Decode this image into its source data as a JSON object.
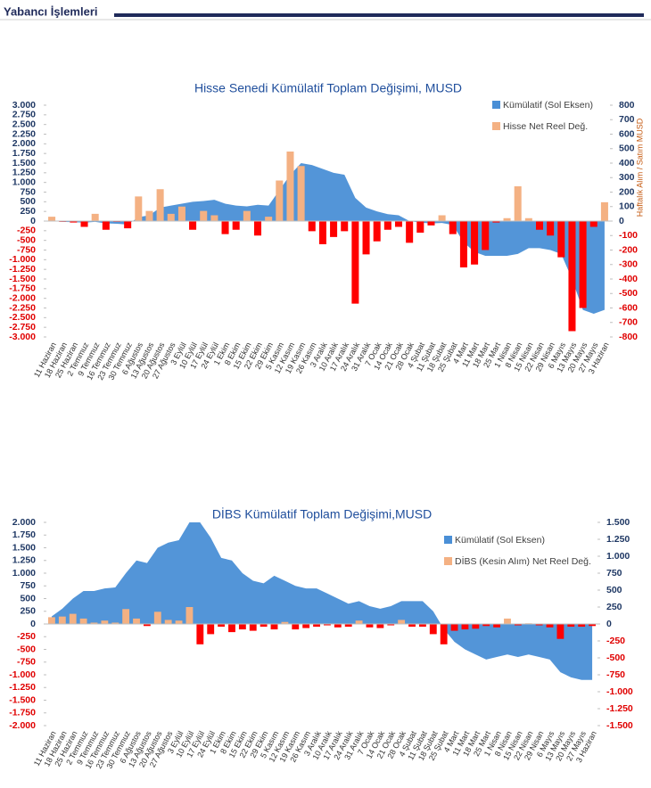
{
  "header": {
    "title": "Yabancı İşlemleri"
  },
  "chart_data": [
    {
      "type": "combo",
      "title": "Hisse Senedi Kümülatif Toplam Değişimi, MUSD",
      "y2label": "Haftalık Alım / Satım MUSD",
      "legend": "top-right",
      "categories": [
        "11 Haziran",
        "18 Haziran",
        "25 Haziran",
        "2 Temmuz",
        "9 Temmuz",
        "16 Temmuz",
        "23 Temmuz",
        "30 Temmuz",
        "6 Ağustos",
        "13 Ağustos",
        "20 Ağustos",
        "27 Ağustos",
        "3 Eylül",
        "10 Eylül",
        "17 Eylül",
        "24 Eylül",
        "1 Ekim",
        "8 Ekim",
        "15 Ekim",
        "22 Ekim",
        "29 Ekim",
        "5 Kasım",
        "12 Kasım",
        "19 Kasım",
        "26 Kasım",
        "3 Aralık",
        "10 Aralık",
        "17 Aralık",
        "24 Aralık",
        "31 Aralık",
        "7 Ocak",
        "14 Ocak",
        "21 Ocak",
        "28 Ocak",
        "4 Şubat",
        "11 Şubat",
        "18 Şubat",
        "25 Şubat",
        "4 Mart",
        "11 Mart",
        "18 Mart",
        "25 Mart",
        "1 Nisan",
        "8 Nisan",
        "15 Nisan",
        "22 Nisan",
        "29 Nisan",
        "6 Mayıs",
        "13 Mayıs",
        "20 Mayıs",
        "27 Mayıs",
        "3 Haziran"
      ],
      "series": [
        {
          "name": "Kümülatif (Sol Eksen)",
          "type": "area",
          "color": "#4a8fd6",
          "values": [
            0,
            -20,
            -30,
            -40,
            -20,
            -60,
            -70,
            -90,
            100,
            150,
            350,
            400,
            450,
            500,
            520,
            550,
            450,
            400,
            380,
            420,
            400,
            800,
            1200,
            1500,
            1450,
            1350,
            1250,
            1200,
            600,
            350,
            250,
            180,
            150,
            0,
            -40,
            -60,
            -50,
            -100,
            -550,
            -800,
            -900,
            -900,
            -900,
            -850,
            -700,
            -700,
            -750,
            -850,
            -1500,
            -2300,
            -2400,
            -2300
          ]
        },
        {
          "name": "Hisse Net Reel Değ.",
          "type": "bar",
          "axis": "y2",
          "color": "#f4b183",
          "negative_color": "#ff0000",
          "values": [
            30,
            -5,
            -10,
            -40,
            50,
            -60,
            -5,
            -50,
            170,
            70,
            220,
            50,
            100,
            -60,
            70,
            40,
            -90,
            -60,
            70,
            -100,
            30,
            280,
            480,
            380,
            -70,
            -160,
            -110,
            -70,
            -570,
            -230,
            -140,
            -60,
            -40,
            -150,
            -80,
            -30,
            40,
            -90,
            -320,
            -300,
            -200,
            -10,
            20,
            240,
            20,
            -60,
            -100,
            -250,
            -760,
            -600,
            -40,
            130
          ]
        }
      ],
      "ylim": [
        -3000,
        3000
      ],
      "yticks": [
        {
          "value": 3000,
          "label": "3.000"
        },
        {
          "value": 2750,
          "label": "2.750"
        },
        {
          "value": 2500,
          "label": "2.500"
        },
        {
          "value": 2250,
          "label": "2.250"
        },
        {
          "value": 2000,
          "label": "2.000"
        },
        {
          "value": 1750,
          "label": "1.750"
        },
        {
          "value": 1500,
          "label": "1.500"
        },
        {
          "value": 1250,
          "label": "1.250"
        },
        {
          "value": 1000,
          "label": "1.000"
        },
        750,
        500,
        250,
        0,
        -250,
        -500,
        -750,
        {
          "value": -1000,
          "label": "-1.000"
        },
        {
          "value": -1250,
          "label": "-1.250"
        },
        {
          "value": -1500,
          "label": "-1.500"
        },
        {
          "value": -1750,
          "label": "-1.750"
        },
        {
          "value": -2000,
          "label": "-2.000"
        },
        {
          "value": -2250,
          "label": "-2.250"
        },
        {
          "value": -2500,
          "label": "-2.500"
        },
        {
          "value": -2750,
          "label": "-2.750"
        },
        {
          "value": -3000,
          "label": "-3.000"
        }
      ],
      "y2lim": [
        -800,
        800
      ],
      "y2ticks": [
        800,
        700,
        600,
        500,
        400,
        300,
        200,
        100,
        0,
        -100,
        -200,
        -300,
        -400,
        -500,
        -600,
        -700,
        -800
      ]
    },
    {
      "type": "combo",
      "title": "DİBS Kümülatif Toplam Değişimi,MUSD",
      "legend": "top-right",
      "categories": [
        "11 Haziran",
        "18 Haziran",
        "25 Haziran",
        "2 Temmuz",
        "9 Temmuz",
        "16 Temmuz",
        "23 Temmuz",
        "30 Temmuz",
        "6 Ağustos",
        "13 Ağustos",
        "20 Ağustos",
        "27 Ağustos",
        "3 Eylül",
        "10 Eylül",
        "17 Eylül",
        "24 Eylül",
        "1 Ekim",
        "8 Ekim",
        "15 Ekim",
        "22 Ekim",
        "29 Ekim",
        "5 Kasım",
        "12 Kasım",
        "19 Kasım",
        "26 Kasım",
        "3 Aralık",
        "10 Aralık",
        "17 Aralık",
        "24 Aralık",
        "31 Aralık",
        "7 Ocak",
        "14 Ocak",
        "21 Ocak",
        "28 Ocak",
        "4 Şubat",
        "11 Şubat",
        "18 Şubat",
        "25 Şubat",
        "4 Mart",
        "11 Mart",
        "18 Mart",
        "25 Mart",
        "1 Nisan",
        "8 Nisan",
        "15 Nisan",
        "22 Nisan",
        "29 Nisan",
        "6 Mayıs",
        "13 Mayıs",
        "20 Mayıs",
        "27 Mayıs",
        "3 Haziran"
      ],
      "series": [
        {
          "name": "Kümülatif (Sol Eksen)",
          "type": "area",
          "color": "#4a8fd6",
          "values": [
            150,
            300,
            500,
            650,
            650,
            700,
            720,
            1000,
            1250,
            1200,
            1500,
            1600,
            1650,
            2000,
            2000,
            1700,
            1300,
            1250,
            1000,
            850,
            800,
            950,
            850,
            750,
            700,
            700,
            600,
            500,
            400,
            450,
            350,
            300,
            350,
            450,
            450,
            450,
            250,
            -100,
            -350,
            -500,
            -600,
            -700,
            -650,
            -600,
            -650,
            -600,
            -650,
            -700,
            -950,
            -1050,
            -1100,
            -1100
          ]
        },
        {
          "name": "DİBS (Kesin Alım) Net Reel Değ.",
          "type": "bar",
          "axis": "y2",
          "color": "#f4b183",
          "negative_color": "#ff0000",
          "values": [
            100,
            110,
            150,
            80,
            20,
            50,
            20,
            220,
            80,
            -30,
            180,
            60,
            50,
            250,
            -300,
            -150,
            -40,
            -120,
            -80,
            -100,
            -40,
            -80,
            30,
            -80,
            -60,
            -40,
            -20,
            -50,
            -40,
            50,
            -50,
            -60,
            -20,
            60,
            -40,
            -40,
            -150,
            -300,
            -100,
            -80,
            -70,
            -30,
            -50,
            80,
            -20,
            10,
            -20,
            -50,
            -220,
            -40,
            -40,
            -30
          ]
        }
      ],
      "ylim": [
        -2000,
        2000
      ],
      "yticks": [
        {
          "value": 2000,
          "label": "2.000"
        },
        {
          "value": 1750,
          "label": "1.750"
        },
        {
          "value": 1500,
          "label": "1.500"
        },
        {
          "value": 1250,
          "label": "1.250"
        },
        {
          "value": 1000,
          "label": "1.000"
        },
        750,
        500,
        250,
        0,
        -250,
        -500,
        -750,
        {
          "value": -1000,
          "label": "-1.000"
        },
        {
          "value": -1250,
          "label": "-1.250"
        },
        {
          "value": -1500,
          "label": "-1.500"
        },
        {
          "value": -1750,
          "label": "-1.750"
        },
        {
          "value": -2000,
          "label": "-2.000"
        }
      ],
      "y2lim": [
        -1500,
        1500
      ],
      "y2ticks": [
        {
          "value": 1500,
          "label": "1.500"
        },
        {
          "value": 1250,
          "label": "1.250"
        },
        {
          "value": 1000,
          "label": "1.000"
        },
        750,
        500,
        250,
        0,
        -250,
        -500,
        -750,
        {
          "value": -1000,
          "label": "-1.000"
        },
        {
          "value": -1250,
          "label": "-1.250"
        },
        {
          "value": -1500,
          "label": "-1.500"
        }
      ]
    }
  ]
}
